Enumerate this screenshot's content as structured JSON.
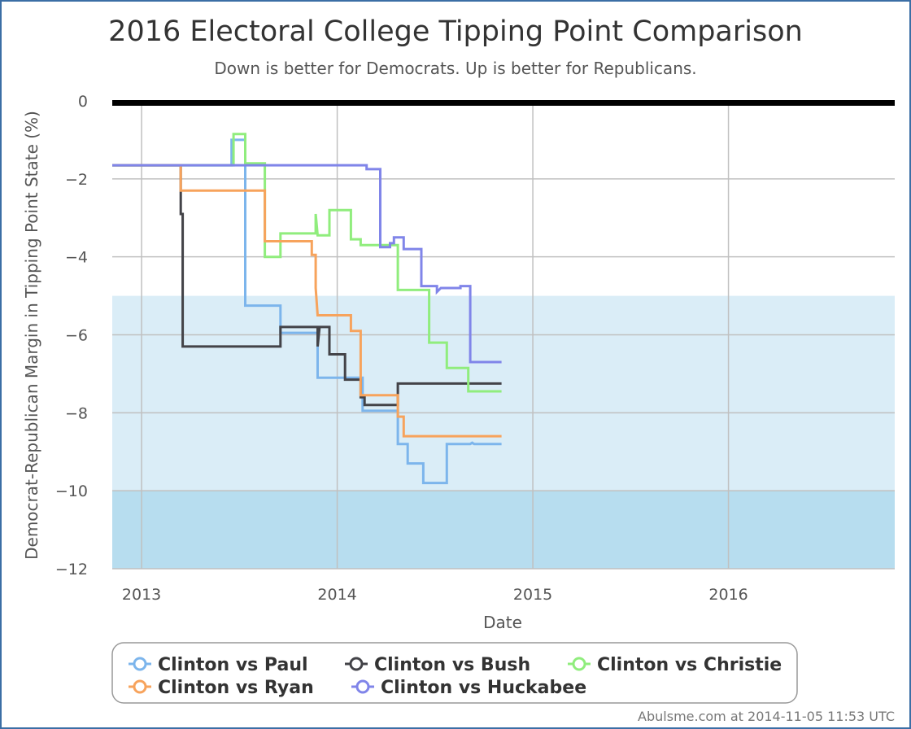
{
  "title": "2016 Electoral College Tipping Point Comparison",
  "subtitle": "Down is better for Democrats. Up is better for Republicans.",
  "footer": "Abulsme.com at 2014-11-05 11:53 UTC",
  "chart_data": {
    "type": "line",
    "step": true,
    "xlabel": "Date",
    "ylabel": "Democrat-Republican Margin in Tipping Point State (%)",
    "xlim": [
      2012.85,
      2016.85
    ],
    "ylim": [
      -12,
      0
    ],
    "x_ticks": [
      "2013",
      "2014",
      "2015",
      "2016"
    ],
    "y_ticks": [
      "0",
      "−2",
      "−4",
      "−6",
      "−8",
      "−10",
      "−12"
    ],
    "grid": true,
    "bands": [
      {
        "from": -10,
        "to": -5,
        "color": "#daedf7"
      },
      {
        "from": -12,
        "to": -10,
        "color": "#b7ddef"
      }
    ],
    "zero_line_color": "#000000",
    "legend_position": "bottom",
    "series": [
      {
        "name": "Clinton vs Paul",
        "color": "#7cb5ec",
        "points": [
          [
            2012.85,
            -1.65
          ],
          [
            2013.46,
            -1.65
          ],
          [
            2013.46,
            -1.0
          ],
          [
            2013.53,
            -1.0
          ],
          [
            2013.53,
            -5.25
          ],
          [
            2013.71,
            -5.25
          ],
          [
            2013.71,
            -5.95
          ],
          [
            2013.9,
            -5.95
          ],
          [
            2013.9,
            -7.1
          ],
          [
            2014.13,
            -7.1
          ],
          [
            2014.13,
            -7.95
          ],
          [
            2014.31,
            -7.95
          ],
          [
            2014.31,
            -8.8
          ],
          [
            2014.36,
            -8.8
          ],
          [
            2014.36,
            -9.3
          ],
          [
            2014.44,
            -9.3
          ],
          [
            2014.44,
            -9.8
          ],
          [
            2014.56,
            -9.8
          ],
          [
            2014.56,
            -8.8
          ],
          [
            2014.68,
            -8.8
          ],
          [
            2014.69,
            -8.77
          ],
          [
            2014.7,
            -8.8
          ],
          [
            2014.84,
            -8.8
          ]
        ]
      },
      {
        "name": "Clinton vs Bush",
        "color": "#434348",
        "points": [
          [
            2012.85,
            -1.65
          ],
          [
            2013.2,
            -1.65
          ],
          [
            2013.2,
            -2.9
          ],
          [
            2013.21,
            -2.9
          ],
          [
            2013.21,
            -6.3
          ],
          [
            2013.71,
            -6.3
          ],
          [
            2013.71,
            -5.8
          ],
          [
            2013.9,
            -5.8
          ],
          [
            2013.9,
            -6.3
          ],
          [
            2013.91,
            -5.8
          ],
          [
            2013.96,
            -5.8
          ],
          [
            2013.96,
            -6.5
          ],
          [
            2014.04,
            -6.5
          ],
          [
            2014.04,
            -7.15
          ],
          [
            2014.12,
            -7.15
          ],
          [
            2014.12,
            -7.6
          ],
          [
            2014.14,
            -7.6
          ],
          [
            2014.14,
            -7.8
          ],
          [
            2014.31,
            -7.8
          ],
          [
            2014.31,
            -7.25
          ],
          [
            2014.84,
            -7.25
          ]
        ]
      },
      {
        "name": "Clinton vs Christie",
        "color": "#90ed7d",
        "points": [
          [
            2012.85,
            -1.65
          ],
          [
            2013.47,
            -1.65
          ],
          [
            2013.47,
            -0.85
          ],
          [
            2013.53,
            -0.85
          ],
          [
            2013.53,
            -1.6
          ],
          [
            2013.63,
            -1.6
          ],
          [
            2013.63,
            -4.0
          ],
          [
            2013.71,
            -4.0
          ],
          [
            2013.71,
            -3.4
          ],
          [
            2013.89,
            -3.4
          ],
          [
            2013.89,
            -2.9
          ],
          [
            2013.9,
            -3.45
          ],
          [
            2013.96,
            -3.45
          ],
          [
            2013.96,
            -2.8
          ],
          [
            2014.07,
            -2.8
          ],
          [
            2014.07,
            -3.55
          ],
          [
            2014.12,
            -3.55
          ],
          [
            2014.12,
            -3.7
          ],
          [
            2014.31,
            -3.7
          ],
          [
            2014.31,
            -4.85
          ],
          [
            2014.47,
            -4.85
          ],
          [
            2014.47,
            -6.2
          ],
          [
            2014.56,
            -6.2
          ],
          [
            2014.56,
            -6.85
          ],
          [
            2014.67,
            -6.85
          ],
          [
            2014.67,
            -7.45
          ],
          [
            2014.84,
            -7.45
          ]
        ]
      },
      {
        "name": "Clinton vs Ryan",
        "color": "#f7a35c",
        "points": [
          [
            2012.85,
            -1.65
          ],
          [
            2013.2,
            -1.65
          ],
          [
            2013.2,
            -2.3
          ],
          [
            2013.63,
            -2.3
          ],
          [
            2013.63,
            -3.6
          ],
          [
            2013.87,
            -3.6
          ],
          [
            2013.87,
            -3.95
          ],
          [
            2013.89,
            -3.95
          ],
          [
            2013.89,
            -4.8
          ],
          [
            2013.9,
            -5.5
          ],
          [
            2014.07,
            -5.5
          ],
          [
            2014.07,
            -5.9
          ],
          [
            2014.12,
            -5.9
          ],
          [
            2014.12,
            -7.55
          ],
          [
            2014.31,
            -7.55
          ],
          [
            2014.31,
            -8.1
          ],
          [
            2014.34,
            -8.1
          ],
          [
            2014.34,
            -8.6
          ],
          [
            2014.84,
            -8.6
          ]
        ]
      },
      {
        "name": "Clinton vs Huckabee",
        "color": "#8085e9",
        "points": [
          [
            2012.85,
            -1.65
          ],
          [
            2014.15,
            -1.65
          ],
          [
            2014.15,
            -1.75
          ],
          [
            2014.22,
            -1.75
          ],
          [
            2014.22,
            -3.75
          ],
          [
            2014.27,
            -3.75
          ],
          [
            2014.27,
            -3.65
          ],
          [
            2014.29,
            -3.65
          ],
          [
            2014.29,
            -3.5
          ],
          [
            2014.34,
            -3.5
          ],
          [
            2014.34,
            -3.8
          ],
          [
            2014.43,
            -3.8
          ],
          [
            2014.43,
            -4.75
          ],
          [
            2014.51,
            -4.75
          ],
          [
            2014.51,
            -4.9
          ],
          [
            2014.53,
            -4.8
          ],
          [
            2014.63,
            -4.8
          ],
          [
            2014.63,
            -4.75
          ],
          [
            2014.68,
            -4.75
          ],
          [
            2014.68,
            -6.7
          ],
          [
            2014.84,
            -6.7
          ]
        ]
      }
    ]
  }
}
